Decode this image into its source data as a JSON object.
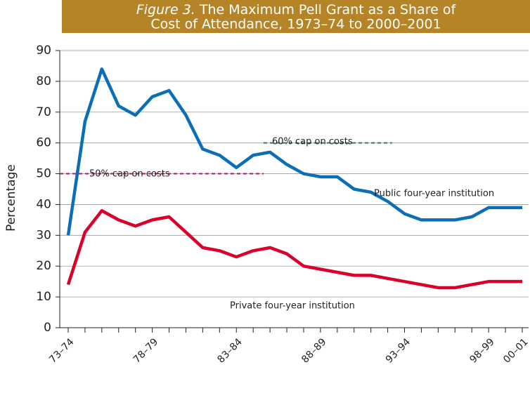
{
  "chart_data": {
    "type": "line",
    "title": {
      "label": "Figure 3.",
      "lines": [
        "The Maximum Pell Grant as a Share of",
        "Cost of Attendance, 1973–74 to 2000–2001"
      ]
    },
    "y_label": "Percentage",
    "categories": [
      "73–74",
      null,
      null,
      null,
      null,
      "78–79",
      null,
      null,
      null,
      null,
      "83–84",
      null,
      null,
      null,
      null,
      "88–89",
      null,
      null,
      null,
      null,
      "93–94",
      null,
      null,
      null,
      null,
      "98–99",
      null,
      "00–01"
    ],
    "series": [
      {
        "name": "Public four-year institution",
        "color": "#0b6fb8",
        "values": [
          30,
          67,
          84,
          72,
          69,
          75,
          77,
          69,
          58,
          56,
          52,
          56,
          57,
          53,
          50,
          49,
          49,
          45,
          44,
          41,
          37,
          35,
          35,
          35,
          36,
          39,
          39,
          39
        ]
      },
      {
        "name": "Private four-year institution",
        "color": "#d9002a",
        "values": [
          14,
          31,
          38,
          35,
          33,
          35,
          36,
          31,
          26,
          25,
          23,
          25,
          26,
          24,
          20,
          19,
          18,
          17,
          17,
          16,
          15,
          14,
          13,
          13,
          14,
          15,
          15,
          15
        ]
      }
    ],
    "annotations": [
      {
        "text": "50% cap on costs",
        "value": 50,
        "color": "#b0146e"
      },
      {
        "text": "60% cap on costs",
        "value": 60,
        "color": "#2e7d4f"
      }
    ],
    "ylim": [
      0,
      90
    ],
    "yticks": [
      0,
      10,
      20,
      30,
      40,
      50,
      60,
      70,
      80,
      90
    ],
    "grid": true
  }
}
